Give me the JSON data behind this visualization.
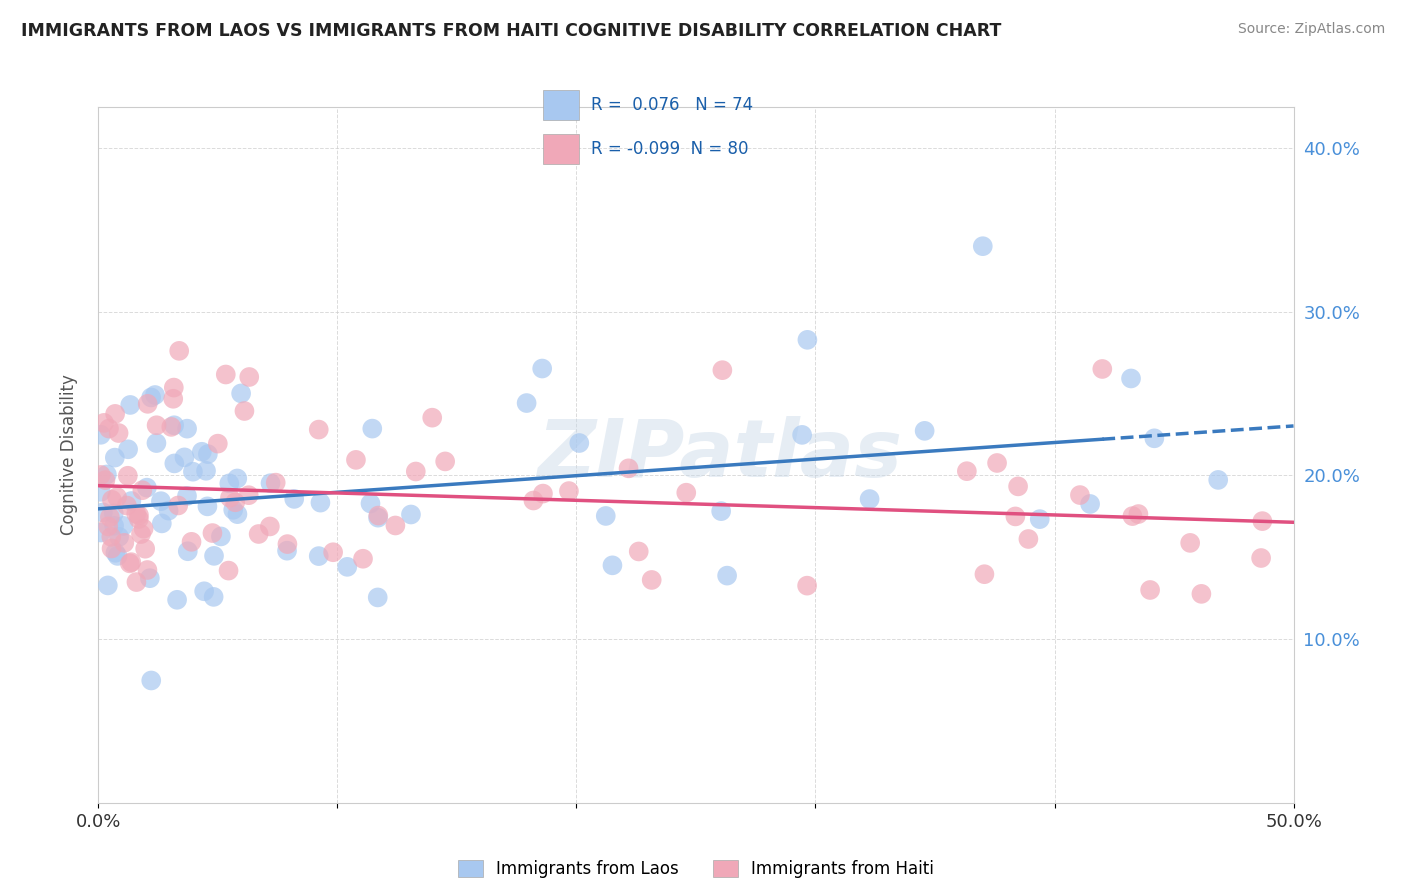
{
  "title": "IMMIGRANTS FROM LAOS VS IMMIGRANTS FROM HAITI COGNITIVE DISABILITY CORRELATION CHART",
  "source": "Source: ZipAtlas.com",
  "ylabel": "Cognitive Disability",
  "xlim": [
    0.0,
    0.5
  ],
  "ylim": [
    0.0,
    0.425
  ],
  "xticks": [
    0.0,
    0.1,
    0.2,
    0.3,
    0.4,
    0.5
  ],
  "yticks": [
    0.1,
    0.2,
    0.3,
    0.4
  ],
  "xticklabels": [
    "0.0%",
    "",
    "",
    "",
    "",
    "50.0%"
  ],
  "yticklabels_right": [
    "10.0%",
    "20.0%",
    "30.0%",
    "40.0%"
  ],
  "legend_labels": [
    "Immigrants from Laos",
    "Immigrants from Haiti"
  ],
  "laos_R": "0.076",
  "laos_N": "74",
  "haiti_R": "-0.099",
  "haiti_N": "80",
  "laos_color": "#a8c8f0",
  "haiti_color": "#f0a8b8",
  "laos_line_color": "#3a7abf",
  "haiti_line_color": "#e05080",
  "watermark": "ZIPatlas",
  "background_color": "#ffffff",
  "grid_color": "#cccccc",
  "tick_color": "#4a90d9",
  "title_color": "#222222",
  "source_color": "#888888",
  "legend_text_color": "#1a5faa",
  "laos_seed": 12345,
  "haiti_seed": 67890,
  "line_intercept_laos": 0.178,
  "line_slope_laos": 0.045,
  "line_intercept_haiti": 0.195,
  "line_slope_haiti": -0.025
}
